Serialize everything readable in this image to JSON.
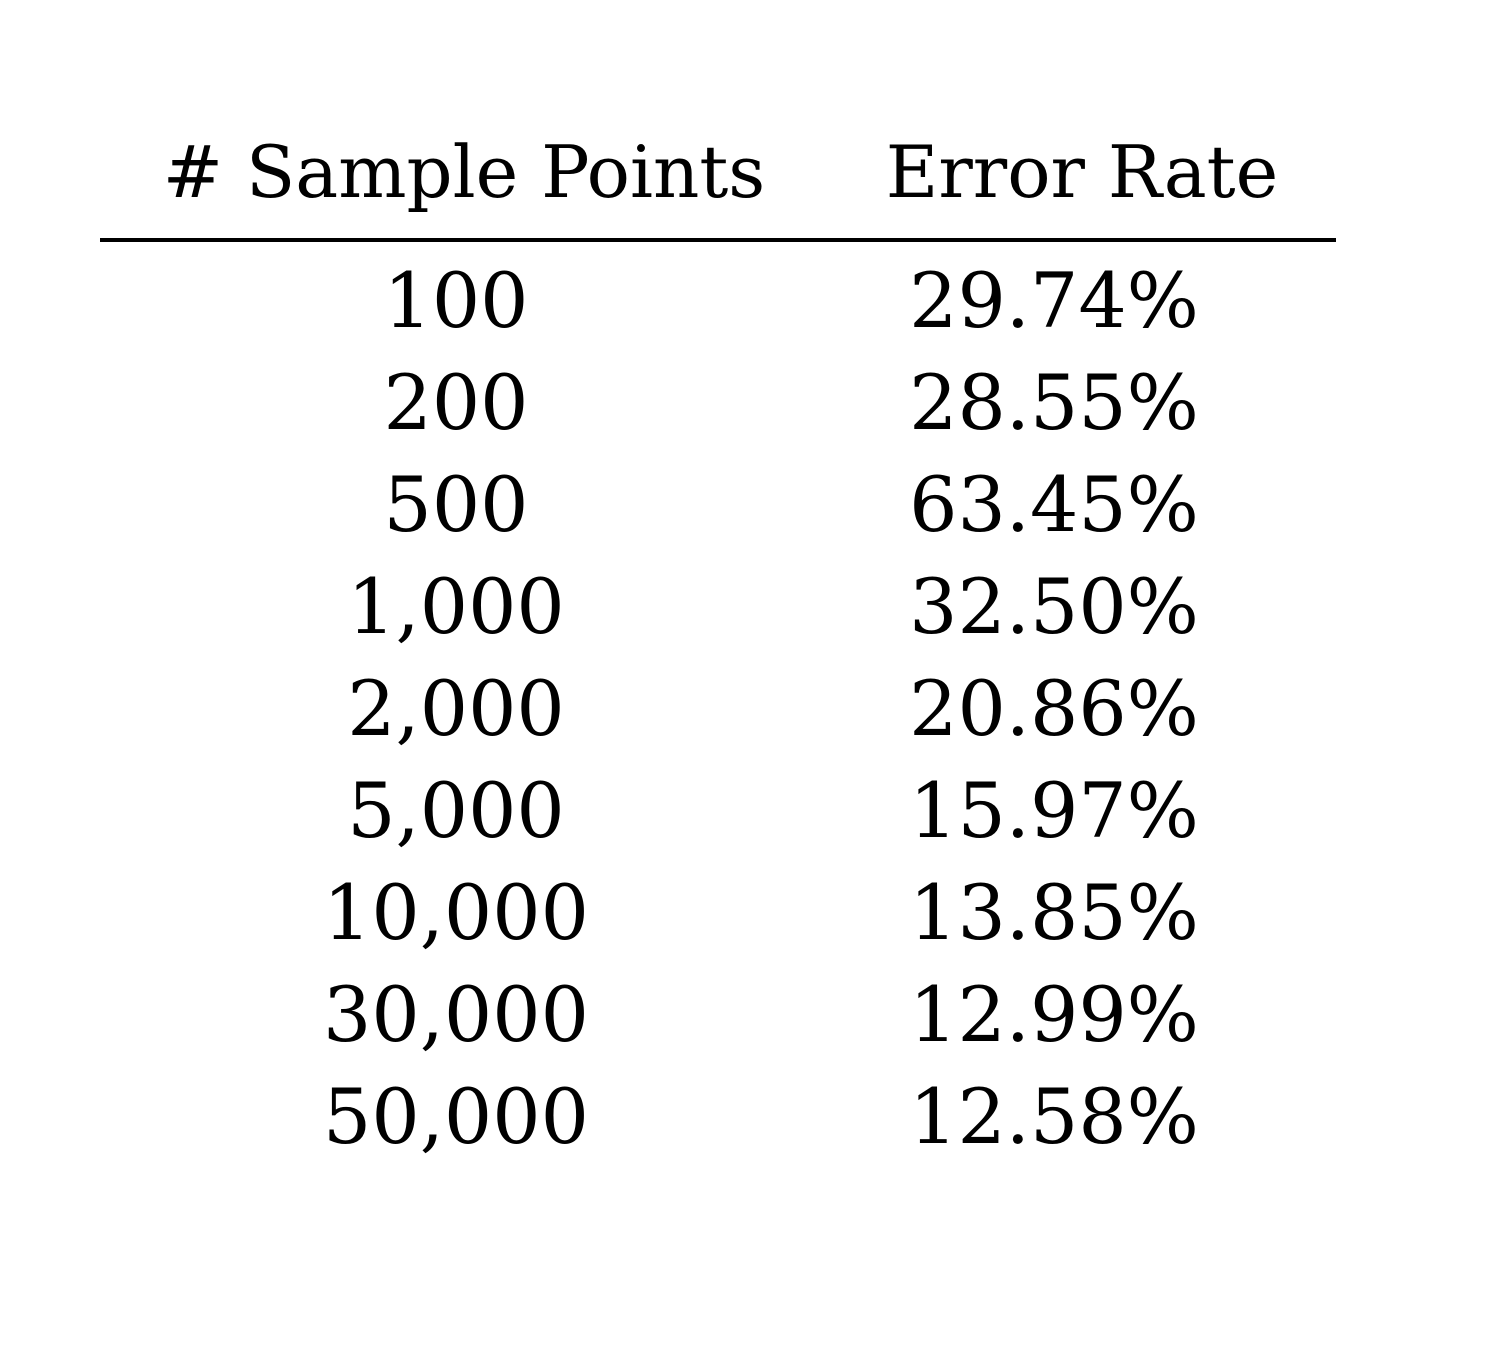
{
  "table": {
    "headers": [
      "# Sample Points",
      "Error Rate"
    ],
    "rows": [
      {
        "samples": "100",
        "error": "29.74%"
      },
      {
        "samples": "200",
        "error": "28.55%"
      },
      {
        "samples": "500",
        "error": "63.45%"
      },
      {
        "samples": "1,000",
        "error": "32.50%"
      },
      {
        "samples": "2,000",
        "error": "20.86%"
      },
      {
        "samples": "5,000",
        "error": "15.97%"
      },
      {
        "samples": "10,000",
        "error": "13.85%"
      },
      {
        "samples": "30,000",
        "error": "12.99%"
      },
      {
        "samples": "50,000",
        "error": "12.58%"
      }
    ]
  }
}
